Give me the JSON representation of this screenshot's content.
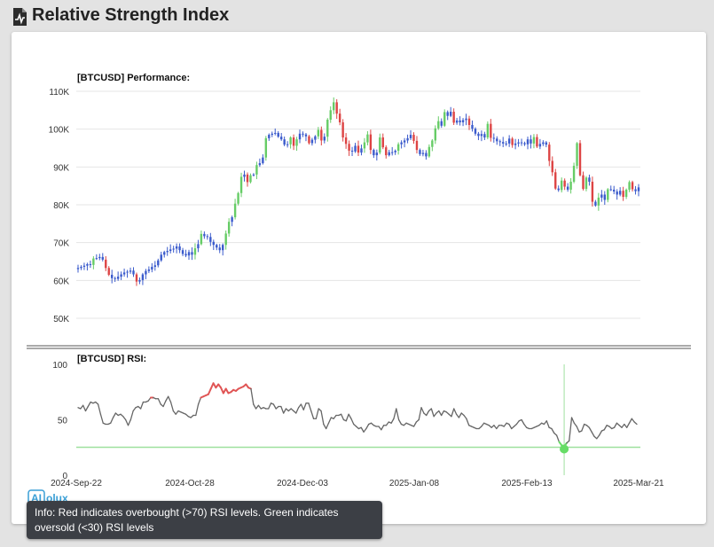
{
  "page": {
    "title": "Relative Strength Index",
    "tooltip": "Info: Red indicates overbought (>70) RSI levels. Green indicates oversold (<30) RSI levels",
    "logo_text": "AIolux"
  },
  "colors": {
    "up": "#66cc66",
    "down": "#dd4444",
    "neutral": "#3b5bcc",
    "rsi_line": "#666666",
    "overbought": "#e05555",
    "oversold": "#66dd66"
  },
  "chart_data": [
    {
      "type": "candlestick",
      "title": "[BTCUSD] Performance:",
      "ylim": [
        45000,
        112000
      ],
      "yticks": [
        {
          "value": 50000,
          "label": "50K"
        },
        {
          "value": 60000,
          "label": "60K"
        },
        {
          "value": 70000,
          "label": "70K"
        },
        {
          "value": 80000,
          "label": "80K"
        },
        {
          "value": 90000,
          "label": "90K"
        },
        {
          "value": 100000,
          "label": "100K"
        },
        {
          "value": 110000,
          "label": "110K"
        }
      ],
      "grid": true,
      "x_start": "2024-09-22",
      "x_end": "2025-03-21",
      "close": [
        63300,
        63600,
        63900,
        64300,
        64100,
        65800,
        65900,
        66200,
        65500,
        63300,
        61500,
        60600,
        60400,
        61000,
        61600,
        62100,
        62300,
        62600,
        61600,
        59700,
        60100,
        61600,
        62500,
        62900,
        63600,
        64000,
        65300,
        66800,
        67500,
        67800,
        68200,
        68400,
        69000,
        68000,
        67000,
        66600,
        67500,
        66800,
        68500,
        69600,
        72300,
        71700,
        71500,
        70200,
        69400,
        68700,
        68000,
        69400,
        72400,
        75500,
        76700,
        80300,
        83100,
        87400,
        88000,
        86000,
        87800,
        88000,
        90500,
        91000,
        92500,
        97600,
        98500,
        98800,
        99000,
        98000,
        97300,
        95900,
        96000,
        97800,
        95600,
        97300,
        98800,
        98600,
        98100,
        96300,
        97200,
        98100,
        99800,
        97000,
        98000,
        102500,
        105000,
        107100,
        104100,
        101800,
        97800,
        96100,
        94300,
        94100,
        95600,
        93800,
        94900,
        96500,
        98600,
        94500,
        93100,
        93800,
        97800,
        95200,
        93100,
        93900,
        93900,
        94300,
        96000,
        96500,
        97000,
        97600,
        98500,
        96900,
        94500,
        93400,
        93700,
        92800,
        95300,
        97000,
        100200,
        102100,
        100900,
        104500,
        103500,
        104600,
        101700,
        102300,
        101800,
        102400,
        102800,
        101100,
        100100,
        98800,
        98200,
        98700,
        97800,
        101400,
        97700,
        97500,
        96800,
        96600,
        96200,
        96200,
        97500,
        95800,
        96200,
        96500,
        96300,
        96000,
        97300,
        96200,
        97900,
        95400,
        96100,
        96500,
        95900,
        91600,
        88600,
        84300,
        83900,
        86400,
        84800,
        84000,
        86100,
        90300,
        96300,
        87800,
        84200,
        87200,
        86100,
        80800,
        79800,
        81900,
        82700,
        81300,
        84100,
        84000,
        83500,
        82700,
        83700,
        82100,
        84000,
        86000,
        84100,
        83600,
        84600
      ]
    },
    {
      "type": "line",
      "title": "[BTCUSD] RSI:",
      "ylim": [
        0,
        100
      ],
      "yticks": [
        {
          "value": 0,
          "label": "0"
        },
        {
          "value": 50,
          "label": "50"
        },
        {
          "value": 100,
          "label": "100"
        }
      ],
      "xticks": [
        "2024-Sep-22",
        "2024-Oct-28",
        "2024-Dec-03",
        "2025-Jan-08",
        "2025-Feb-13",
        "2025-Mar-21"
      ],
      "thresholds": {
        "overbought": 70,
        "oversold": 30
      },
      "oversold_marker_date": "2025-Feb-28",
      "values": [
        61,
        60,
        63,
        58,
        62,
        66,
        65,
        66,
        64,
        55,
        47,
        46,
        46,
        47,
        52,
        56,
        54,
        55,
        53,
        50,
        45,
        50,
        58,
        61,
        62,
        60,
        66,
        66,
        67,
        70,
        70,
        69,
        69,
        64,
        62,
        67,
        71,
        66,
        58,
        55,
        58,
        57,
        56,
        55,
        53,
        52,
        54,
        54,
        64,
        70,
        71,
        72,
        73,
        78,
        83,
        79,
        82,
        79,
        74,
        78,
        74,
        75,
        77,
        76,
        78,
        79,
        80,
        82,
        79,
        78,
        64,
        60,
        63,
        60,
        61,
        60,
        60,
        65,
        64,
        60,
        62,
        62,
        56,
        60,
        58,
        60,
        58,
        56,
        61,
        64,
        59,
        65,
        65,
        58,
        51,
        51,
        60,
        58,
        46,
        42,
        47,
        52,
        51,
        54,
        54,
        55,
        50,
        49,
        55,
        51,
        46,
        44,
        42,
        43,
        39,
        42,
        46,
        47,
        45,
        44,
        44,
        41,
        45,
        45,
        48,
        47,
        51,
        60,
        50,
        46,
        45,
        47,
        46,
        45,
        44,
        48,
        50,
        61,
        56,
        54,
        58,
        60,
        53,
        56,
        58,
        54,
        58,
        57,
        55,
        53,
        60,
        55,
        52,
        56,
        54,
        51,
        45,
        44,
        43,
        42,
        42,
        44,
        47,
        46,
        45,
        43,
        45,
        42,
        45,
        45,
        44,
        47,
        46,
        42,
        44,
        46,
        49,
        50,
        46,
        43,
        42,
        42,
        43,
        44,
        45,
        47,
        46,
        49,
        43,
        42,
        38,
        36,
        30,
        27,
        26,
        29,
        31,
        52,
        47,
        44,
        39,
        40,
        46,
        45,
        43,
        39,
        35,
        33,
        36,
        40,
        41,
        45,
        44,
        42,
        43,
        47,
        45,
        43,
        46,
        43,
        47,
        51,
        48,
        46
      ]
    }
  ]
}
